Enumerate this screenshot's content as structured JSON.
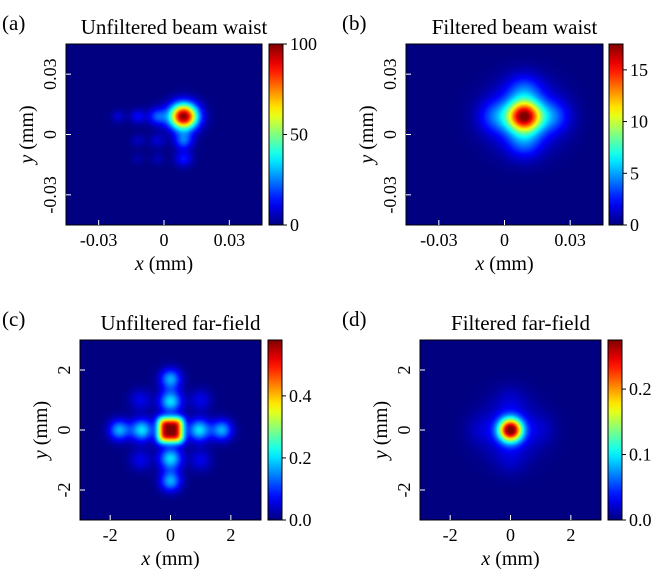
{
  "chart_data": [
    {
      "type": "heatmap",
      "panel_label": "(a)",
      "title": "Unfiltered beam waist",
      "xlabel_var": "x",
      "xlabel_unit": " (mm)",
      "ylabel_var": "y",
      "ylabel_unit": " (mm)",
      "x_ticks": [
        -0.03,
        0,
        0.03
      ],
      "x_tick_labels": [
        "-0.03",
        "0",
        "0.03"
      ],
      "y_ticks": [
        -0.03,
        0,
        0.03
      ],
      "y_tick_labels": [
        "-0.03",
        "0",
        "0.03"
      ],
      "xlim": [
        -0.045,
        0.045
      ],
      "ylim": [
        -0.045,
        0.045
      ],
      "colorbar_range": [
        0,
        100
      ],
      "colorbar_ticks": [
        0,
        50,
        100
      ],
      "colorbar_tick_labels": [
        "0",
        "50",
        "100"
      ],
      "colormap": "jet",
      "features": [
        {
          "x": 0.009,
          "y": 0.009,
          "peak": 100,
          "width": 0.0045
        },
        {
          "x": -0.003,
          "y": 0.009,
          "peak": 20,
          "width": 0.003
        },
        {
          "x": -0.012,
          "y": 0.009,
          "peak": 12,
          "width": 0.0025
        },
        {
          "x": -0.021,
          "y": 0.009,
          "peak": 8,
          "width": 0.0022
        },
        {
          "x": 0.009,
          "y": -0.003,
          "peak": 22,
          "width": 0.003
        },
        {
          "x": 0.009,
          "y": -0.012,
          "peak": 14,
          "width": 0.0028
        },
        {
          "x": -0.003,
          "y": -0.003,
          "peak": 8,
          "width": 0.0025
        },
        {
          "x": -0.012,
          "y": -0.003,
          "peak": 6,
          "width": 0.0022
        },
        {
          "x": -0.003,
          "y": -0.012,
          "peak": 5,
          "width": 0.0022
        },
        {
          "x": -0.012,
          "y": -0.012,
          "peak": 4,
          "width": 0.002
        }
      ]
    },
    {
      "type": "heatmap",
      "panel_label": "(b)",
      "title": "Filtered beam waist",
      "xlabel_var": "x",
      "xlabel_unit": " (mm)",
      "ylabel_var": "y",
      "ylabel_unit": " (mm)",
      "x_ticks": [
        -0.03,
        0,
        0.03
      ],
      "x_tick_labels": [
        "-0.03",
        "0",
        "0.03"
      ],
      "y_ticks": [
        -0.03,
        0,
        0.03
      ],
      "y_tick_labels": [
        "-0.03",
        "0",
        "0.03"
      ],
      "xlim": [
        -0.045,
        0.045
      ],
      "ylim": [
        -0.045,
        0.045
      ],
      "colorbar_range": [
        0,
        17.5
      ],
      "colorbar_ticks": [
        0,
        5,
        10,
        15
      ],
      "colorbar_tick_labels": [
        "0",
        "5",
        "10",
        "15"
      ],
      "colormap": "jet",
      "features": [
        {
          "x": 0.009,
          "y": 0.009,
          "peak": 14,
          "width": 0.0052
        },
        {
          "x": 0.009,
          "y": 0.009,
          "peak": 3.5,
          "width": 0.011
        },
        {
          "x": -0.004,
          "y": 0.009,
          "peak": 2.6,
          "width": 0.0055
        },
        {
          "x": 0.022,
          "y": 0.009,
          "peak": 2.6,
          "width": 0.0055
        },
        {
          "x": 0.009,
          "y": -0.004,
          "peak": 2.6,
          "width": 0.0055
        },
        {
          "x": 0.009,
          "y": 0.022,
          "peak": 2.6,
          "width": 0.0055
        }
      ]
    },
    {
      "type": "heatmap",
      "panel_label": "(c)",
      "title": "Unfiltered far-field",
      "xlabel_var": "x",
      "xlabel_unit": " (mm)",
      "ylabel_var": "y",
      "ylabel_unit": " (mm)",
      "x_ticks": [
        -2,
        0,
        2
      ],
      "x_tick_labels": [
        "-2",
        "0",
        "2"
      ],
      "y_ticks": [
        -2,
        0,
        2
      ],
      "y_tick_labels": [
        "-2",
        "0",
        "2"
      ],
      "xlim": [
        -3,
        3
      ],
      "ylim": [
        -3,
        3
      ],
      "colorbar_range": [
        0,
        0.58
      ],
      "colorbar_ticks": [
        0,
        0.2,
        0.4
      ],
      "colorbar_tick_labels": [
        "0.0",
        "0.2",
        "0.4"
      ],
      "colormap": "jet",
      "features": [
        {
          "x": 0,
          "y": 0,
          "peak": 0.6,
          "width": 0.42,
          "shape": "square"
        },
        {
          "x": -0.95,
          "y": 0,
          "peak": 0.2,
          "width": 0.26
        },
        {
          "x": 0.95,
          "y": 0,
          "peak": 0.2,
          "width": 0.26
        },
        {
          "x": 0,
          "y": -0.95,
          "peak": 0.2,
          "width": 0.26
        },
        {
          "x": 0,
          "y": 0.95,
          "peak": 0.2,
          "width": 0.26
        },
        {
          "x": -1.7,
          "y": 0,
          "peak": 0.17,
          "width": 0.24
        },
        {
          "x": 1.7,
          "y": 0,
          "peak": 0.17,
          "width": 0.24
        },
        {
          "x": 0,
          "y": -1.7,
          "peak": 0.17,
          "width": 0.24
        },
        {
          "x": 0,
          "y": 1.7,
          "peak": 0.17,
          "width": 0.24
        },
        {
          "x": -1.0,
          "y": -1.0,
          "peak": 0.06,
          "width": 0.25
        },
        {
          "x": 1.0,
          "y": -1.0,
          "peak": 0.06,
          "width": 0.25
        },
        {
          "x": -1.0,
          "y": 1.0,
          "peak": 0.06,
          "width": 0.25
        },
        {
          "x": 1.0,
          "y": 1.0,
          "peak": 0.06,
          "width": 0.25
        }
      ]
    },
    {
      "type": "heatmap",
      "panel_label": "(d)",
      "title": "Filtered far-field",
      "xlabel_var": "x",
      "xlabel_unit": " (mm)",
      "ylabel_var": "y",
      "ylabel_unit": " (mm)",
      "x_ticks": [
        -2,
        0,
        2
      ],
      "x_tick_labels": [
        "-2",
        "0",
        "2"
      ],
      "y_ticks": [
        -2,
        0,
        2
      ],
      "y_tick_labels": [
        "-2",
        "0",
        "2"
      ],
      "xlim": [
        -3,
        3
      ],
      "ylim": [
        -3,
        3
      ],
      "colorbar_range": [
        0,
        0.275
      ],
      "colorbar_ticks": [
        0,
        0.1,
        0.2
      ],
      "colorbar_tick_labels": [
        "0.0",
        "0.1",
        "0.2"
      ],
      "colormap": "jet",
      "features": [
        {
          "x": 0,
          "y": 0,
          "peak": 0.265,
          "width": 0.27
        },
        {
          "x": 0,
          "y": 0,
          "peak": 0.03,
          "width": 0.7
        },
        {
          "x": -1.0,
          "y": 0,
          "peak": 0.012,
          "width": 0.35
        },
        {
          "x": 1.0,
          "y": 0,
          "peak": 0.012,
          "width": 0.35
        },
        {
          "x": 0,
          "y": -1.0,
          "peak": 0.012,
          "width": 0.35
        },
        {
          "x": 0,
          "y": 1.0,
          "peak": 0.012,
          "width": 0.35
        }
      ]
    }
  ]
}
